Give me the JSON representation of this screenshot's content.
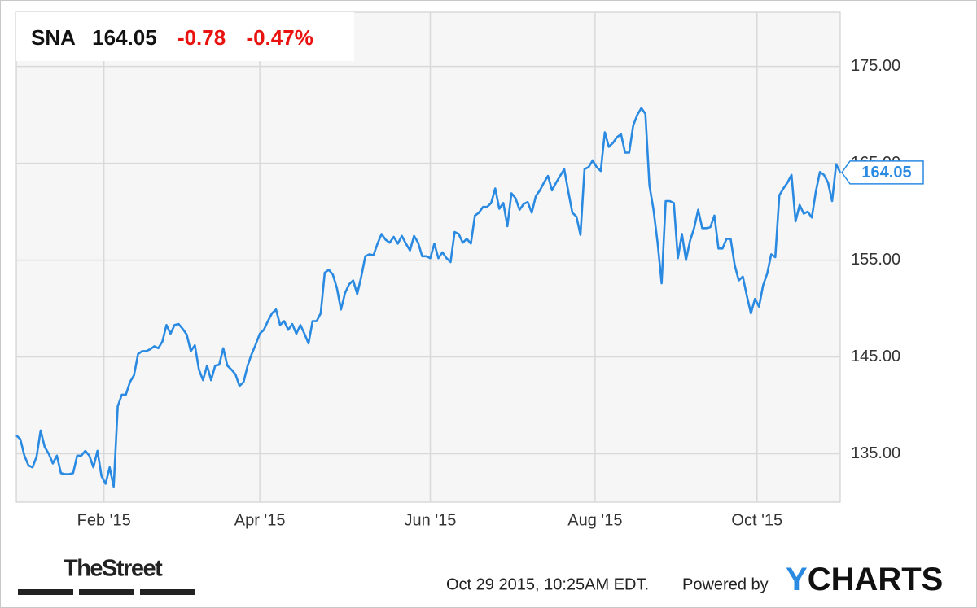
{
  "chart_data": {
    "type": "line",
    "header": {
      "symbol": "SNA",
      "price": "164.05",
      "change": "-0.78",
      "change_pct": "-0.47%"
    },
    "color": "#2a8ae2",
    "change_color": "#e8130f",
    "values": [
      136.9,
      136.5,
      134.8,
      133.8,
      133.6,
      134.7,
      137.4,
      135.7,
      135.0,
      134.0,
      134.8,
      133.0,
      132.9,
      132.9,
      133.0,
      134.8,
      134.8,
      135.3,
      134.8,
      133.6,
      135.3,
      132.7,
      131.9,
      133.6,
      131.6,
      139.9,
      141.1,
      141.1,
      142.4,
      143.1,
      145.3,
      145.6,
      145.6,
      145.8,
      146.1,
      145.9,
      146.6,
      148.3,
      147.4,
      148.3,
      148.4,
      147.9,
      147.3,
      145.6,
      146.2,
      143.7,
      142.6,
      144.1,
      142.6,
      144.1,
      144.2,
      145.9,
      144.1,
      143.7,
      143.2,
      142.0,
      142.4,
      144.1,
      145.3,
      146.3,
      147.4,
      147.8,
      148.7,
      149.5,
      149.9,
      148.3,
      148.7,
      147.8,
      148.4,
      147.4,
      148.3,
      147.4,
      146.4,
      148.7,
      148.7,
      149.5,
      153.7,
      154.0,
      153.5,
      152.1,
      149.9,
      151.6,
      152.5,
      152.9,
      151.5,
      153.3,
      155.4,
      155.6,
      155.5,
      156.7,
      157.7,
      157.1,
      156.8,
      157.4,
      156.7,
      157.5,
      156.7,
      156.0,
      157.5,
      156.8,
      155.4,
      155.4,
      155.2,
      156.7,
      155.2,
      155.8,
      155.2,
      154.8,
      157.9,
      157.7,
      156.8,
      157.2,
      156.7,
      159.6,
      159.9,
      160.5,
      160.5,
      160.9,
      162.4,
      160.3,
      160.9,
      158.5,
      161.9,
      161.4,
      160.2,
      160.8,
      161.0,
      159.9,
      161.6,
      162.2,
      163.0,
      163.7,
      162.2,
      163.0,
      163.7,
      164.4,
      162.1,
      159.9,
      159.5,
      157.6,
      164.4,
      164.6,
      165.3,
      164.6,
      164.2,
      168.2,
      166.7,
      167.1,
      167.7,
      168.0,
      166.1,
      166.1,
      168.9,
      170.0,
      170.7,
      170.1,
      162.7,
      160.2,
      156.8,
      152.6,
      161.1,
      161.1,
      160.9,
      155.2,
      157.7,
      155.0,
      157.0,
      158.3,
      160.2,
      158.3,
      158.3,
      158.4,
      159.6,
      156.2,
      156.2,
      157.2,
      157.2,
      154.5,
      152.9,
      153.3,
      151.3,
      149.5,
      151.0,
      150.2,
      152.4,
      153.6,
      155.6,
      155.3,
      161.7,
      162.4,
      163.0,
      163.8,
      159.0,
      160.7,
      159.8,
      160.0,
      159.4,
      162.1,
      164.1,
      163.8,
      163.0,
      161.1,
      164.9,
      164.05
    ],
    "xlim": [
      0,
      203
    ],
    "xticks": [
      {
        "value": 21.6,
        "label": "Feb '15"
      },
      {
        "value": 60,
        "label": "Apr '15"
      },
      {
        "value": 102,
        "label": "Jun '15"
      },
      {
        "value": 142.6,
        "label": "Aug '15"
      },
      {
        "value": 182.5,
        "label": "Oct '15"
      }
    ],
    "ylim": [
      130,
      180.6
    ],
    "yticks": [
      {
        "value": 135,
        "label": "135.00"
      },
      {
        "value": 145,
        "label": "145.00"
      },
      {
        "value": 155,
        "label": "155.00"
      },
      {
        "value": 165,
        "label": "165.00"
      },
      {
        "value": 175,
        "label": "175.00"
      }
    ],
    "grid": true,
    "footer": {
      "source": "TheStreet",
      "timestamp": "Oct 29 2015, 10:25AM EDT.",
      "powered": "Powered by",
      "logo_y": "Y",
      "logo_rest": "CHARTS"
    }
  }
}
